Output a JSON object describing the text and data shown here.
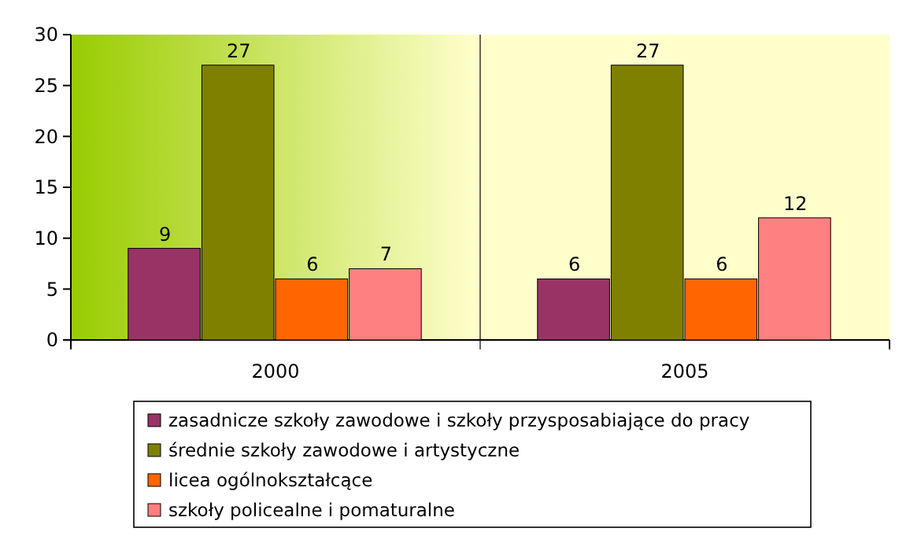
{
  "chart_data": {
    "type": "bar",
    "categories": [
      "2000",
      "2005"
    ],
    "series": [
      {
        "name": "zasadnicze szkoły zawodowe i szkoły przysposabiające do pracy",
        "color": "#993366",
        "values": [
          9,
          6
        ]
      },
      {
        "name": "średnie szkoły zawodowe i artystyczne",
        "color": "#808000",
        "values": [
          27,
          27
        ]
      },
      {
        "name": "licea ogólnokształcące",
        "color": "#ff6600",
        "values": [
          6,
          6
        ]
      },
      {
        "name": "szkoły policealne i pomaturalne",
        "color": "#ff8080",
        "values": [
          7,
          12
        ]
      }
    ],
    "ylim": [
      0,
      30
    ],
    "yticks": [
      0,
      5,
      10,
      15,
      20,
      25,
      30
    ],
    "data_labels": true,
    "legend": "bottom"
  }
}
